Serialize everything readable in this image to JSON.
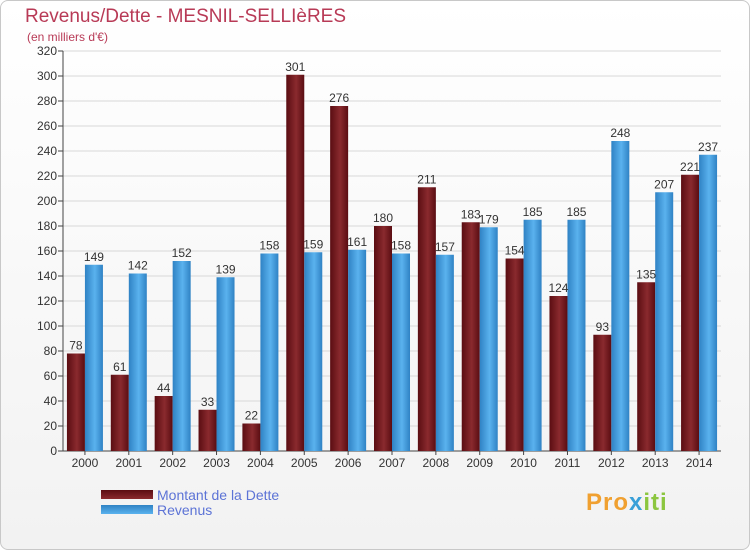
{
  "title": "Revenus/Dette - MESNIL-SELLIèRES",
  "subtitle": "(en milliers d'€)",
  "logo": {
    "part1": "Pro",
    "part2": "x",
    "part3": "iti"
  },
  "colors": {
    "dette": "#7a1e22",
    "revenus": "#4aa6e4"
  },
  "chart_data": {
    "type": "bar",
    "title": "Revenus/Dette - MESNIL-SELLIèRES",
    "ylabel": "(en milliers d'€)",
    "ylim": [
      0,
      320
    ],
    "ytick_step": 20,
    "grid": true,
    "legend_position": "bottom-left",
    "categories": [
      "2000",
      "2001",
      "2002",
      "2003",
      "2004",
      "2005",
      "2006",
      "2007",
      "2008",
      "2009",
      "2010",
      "2011",
      "2012",
      "2013",
      "2014"
    ],
    "series": [
      {
        "name": "Montant de la Dette",
        "values": [
          78,
          61,
          44,
          33,
          22,
          301,
          276,
          180,
          211,
          183,
          154,
          124,
          93,
          135,
          221
        ]
      },
      {
        "name": "Revenus",
        "values": [
          149,
          142,
          152,
          139,
          158,
          159,
          161,
          158,
          157,
          179,
          185,
          185,
          248,
          207,
          237
        ]
      }
    ]
  }
}
